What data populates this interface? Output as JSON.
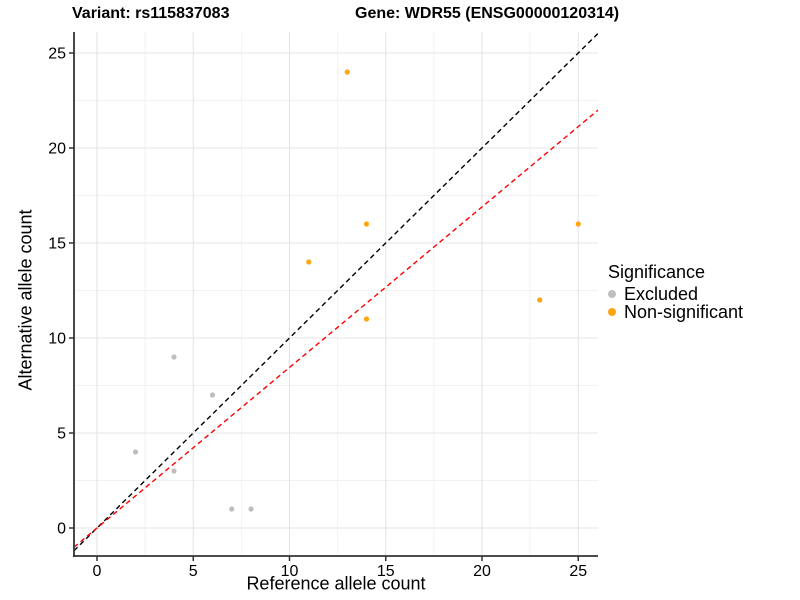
{
  "chart_data": {
    "type": "scatter",
    "title_left": "Variant: rs115837083",
    "title_right": "Gene: WDR55 (ENSG00000120314)",
    "xlabel": "Reference allele count",
    "ylabel": "Alternative allele count",
    "xlim": [
      -1.2,
      26
    ],
    "ylim": [
      -1.5,
      26.1
    ],
    "xticks": [
      0,
      5,
      10,
      15,
      20,
      25
    ],
    "yticks": [
      0,
      5,
      10,
      15,
      20,
      25
    ],
    "grid": {
      "major": true,
      "minor": true,
      "major_color": "#E4E4E4",
      "minor_color": "#F2F2F2"
    },
    "legend": {
      "position": "right",
      "title": "Significance"
    },
    "series": [
      {
        "name": "Excluded",
        "color": "#BEBEBE",
        "marker": "circle",
        "points": [
          [
            2,
            4
          ],
          [
            4,
            3
          ],
          [
            4,
            9
          ],
          [
            6,
            7
          ],
          [
            7,
            1
          ],
          [
            8,
            1
          ]
        ]
      },
      {
        "name": "Non-significant",
        "color": "#FFA510",
        "marker": "circle",
        "points": [
          [
            11,
            14
          ],
          [
            13,
            24
          ],
          [
            14,
            11
          ],
          [
            14,
            16
          ],
          [
            23,
            12
          ],
          [
            25,
            16
          ]
        ]
      }
    ],
    "lines": [
      {
        "name": "identity-line",
        "style": "dashed",
        "color": "#000000",
        "slope": 1,
        "intercept": 0
      },
      {
        "name": "expected-ratio-line",
        "style": "dashed",
        "color": "#FF0000",
        "slope": 0.845,
        "intercept": 0
      }
    ],
    "axis_color": "#333333"
  }
}
